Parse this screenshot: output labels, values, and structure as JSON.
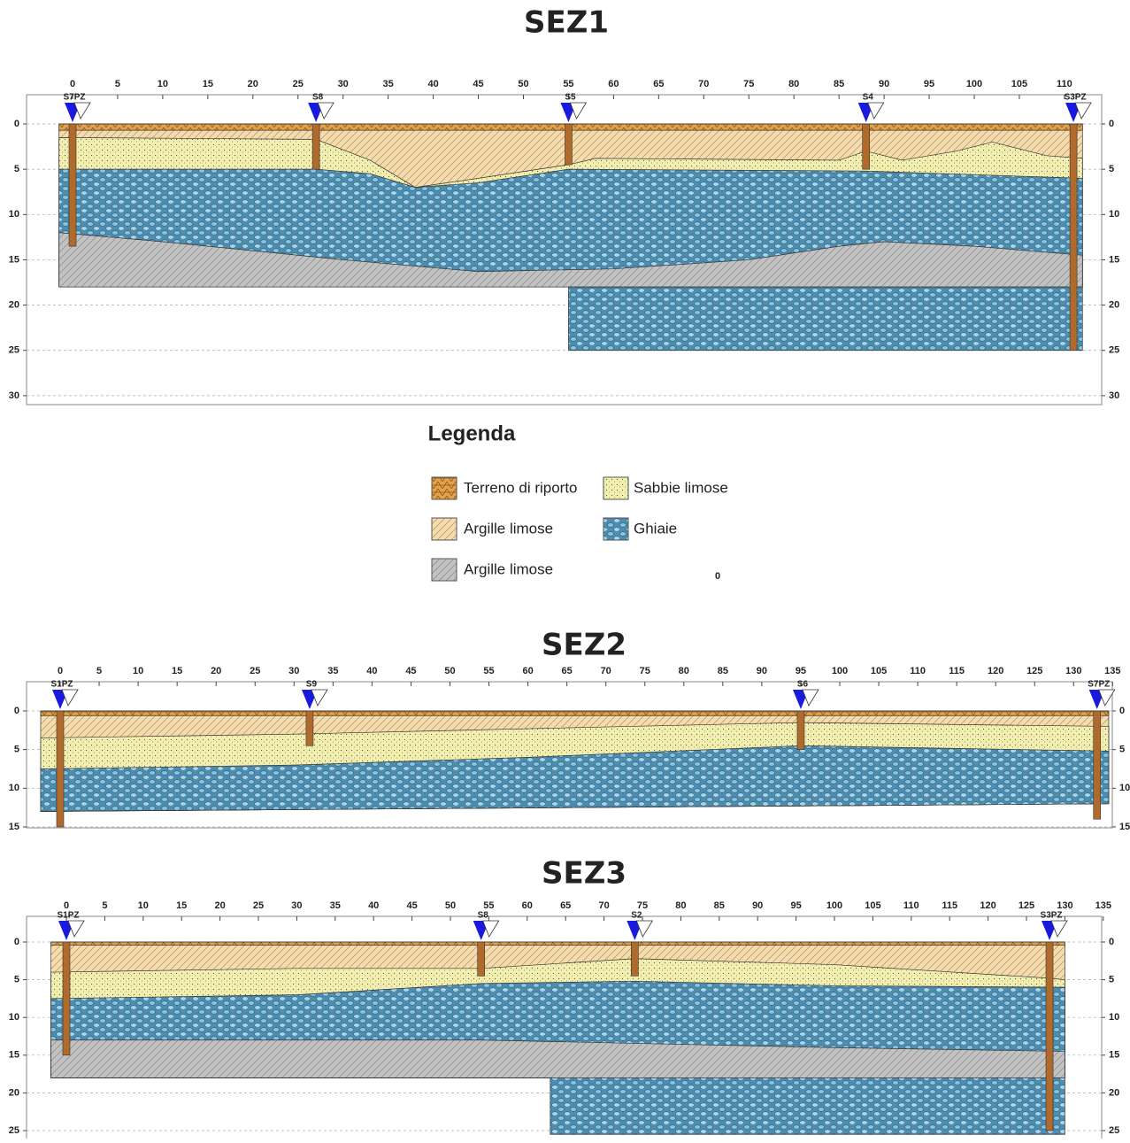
{
  "sections": [
    {
      "title": "SEZ1",
      "x_ticks": [
        0,
        5,
        10,
        15,
        20,
        25,
        30,
        35,
        40,
        45,
        50,
        55,
        60,
        65,
        70,
        75,
        80,
        85,
        90,
        95,
        100,
        105,
        110
      ],
      "depth_ticks": [
        0,
        5,
        10,
        15,
        20,
        25,
        30
      ],
      "boreholes": [
        "S7PZ",
        "S8",
        "S5",
        "S4",
        "S3PZ"
      ]
    },
    {
      "title": "SEZ2",
      "x_ticks": [
        0,
        5,
        10,
        15,
        20,
        25,
        30,
        35,
        40,
        45,
        50,
        55,
        60,
        65,
        70,
        75,
        80,
        85,
        90,
        95,
        100,
        105,
        110,
        115,
        120,
        125,
        130,
        135
      ],
      "depth_ticks": [
        0,
        5,
        10,
        15
      ],
      "boreholes": [
        "S1PZ",
        "S9",
        "S6",
        "S7PZ"
      ]
    },
    {
      "title": "SEZ3",
      "x_ticks": [
        0,
        5,
        10,
        15,
        20,
        25,
        30,
        35,
        40,
        45,
        50,
        55,
        60,
        65,
        70,
        75,
        80,
        85,
        90,
        95,
        100,
        105,
        110,
        115,
        120,
        125,
        130,
        135
      ],
      "depth_ticks": [
        0,
        5,
        10,
        15,
        20,
        25
      ],
      "boreholes": [
        "S1PZ",
        "S8",
        "S2",
        "S3PZ"
      ]
    }
  ],
  "legend": {
    "title": "Legenda",
    "items": [
      "Terreno di riporto",
      "Sabbie limose",
      "Argille limose",
      "Ghiaie",
      "Argille limose"
    ]
  },
  "note": "0"
}
